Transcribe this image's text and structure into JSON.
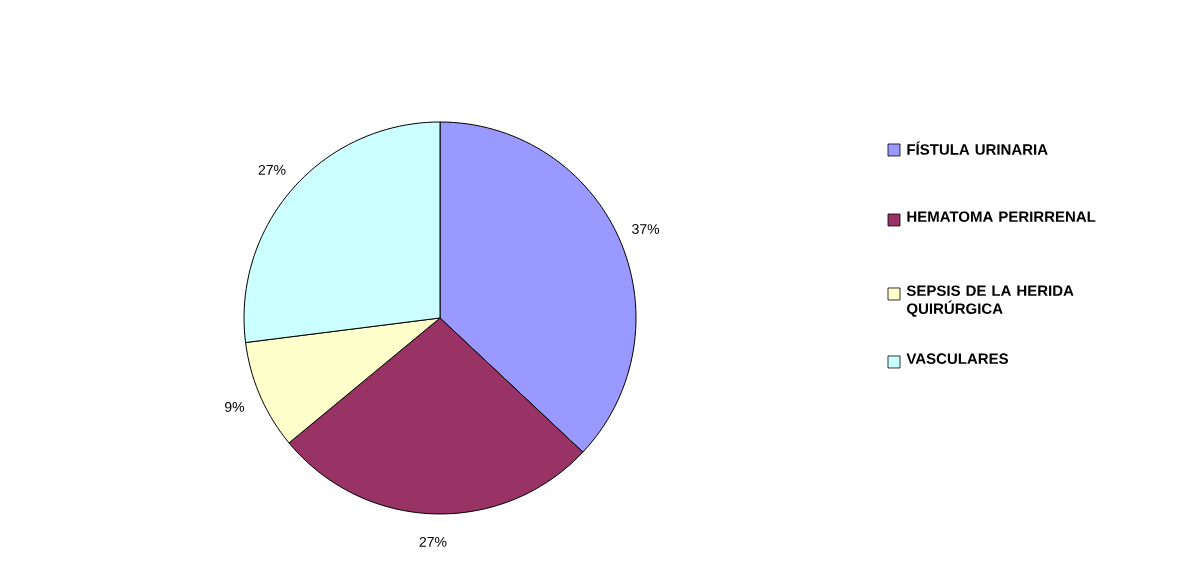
{
  "chart_data": {
    "type": "pie",
    "categories": [
      "FÍSTULA  URINARIA",
      "HEMATOMA PERIRRENAL",
      "SEPSIS DE LA HERIDA QUIRÚRGICA",
      "VASCULARES"
    ],
    "values": [
      37,
      27,
      9,
      27
    ],
    "colors": [
      "#9999ff",
      "#993366",
      "#ffffcc",
      "#ccffff"
    ],
    "value_labels": [
      "37%",
      "27%",
      "9%",
      "27%"
    ],
    "legend": "right"
  }
}
